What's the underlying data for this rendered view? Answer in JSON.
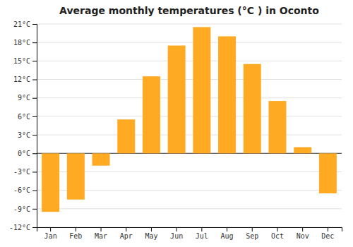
{
  "chart_data": {
    "type": "bar",
    "title": "Average monthly temperatures (°C ) in Oconto",
    "categories": [
      "Jan",
      "Feb",
      "Mar",
      "Apr",
      "May",
      "Jun",
      "Jul",
      "Aug",
      "Sep",
      "Oct",
      "Nov",
      "Dec"
    ],
    "values": [
      -9.5,
      -7.5,
      -2.0,
      5.5,
      12.5,
      17.5,
      20.5,
      19.0,
      14.5,
      8.5,
      1.0,
      -6.5
    ],
    "color": "#FFAA22",
    "ylim": [
      -12,
      21
    ],
    "yticks": [
      {
        "value": -12,
        "label": "-12°C"
      },
      {
        "value": -9,
        "label": "-9°C"
      },
      {
        "value": -6,
        "label": "-6°C"
      },
      {
        "value": -3,
        "label": "-3°C"
      },
      {
        "value": 0,
        "label": "0°C"
      },
      {
        "value": 3,
        "label": "3°C"
      },
      {
        "value": 6,
        "label": "6°C"
      },
      {
        "value": 9,
        "label": "9°C"
      },
      {
        "value": 12,
        "label": "12°C"
      },
      {
        "value": 15,
        "label": "15°C"
      },
      {
        "value": 18,
        "label": "18°C"
      },
      {
        "value": 21,
        "label": "21°C"
      }
    ],
    "grid": true
  }
}
